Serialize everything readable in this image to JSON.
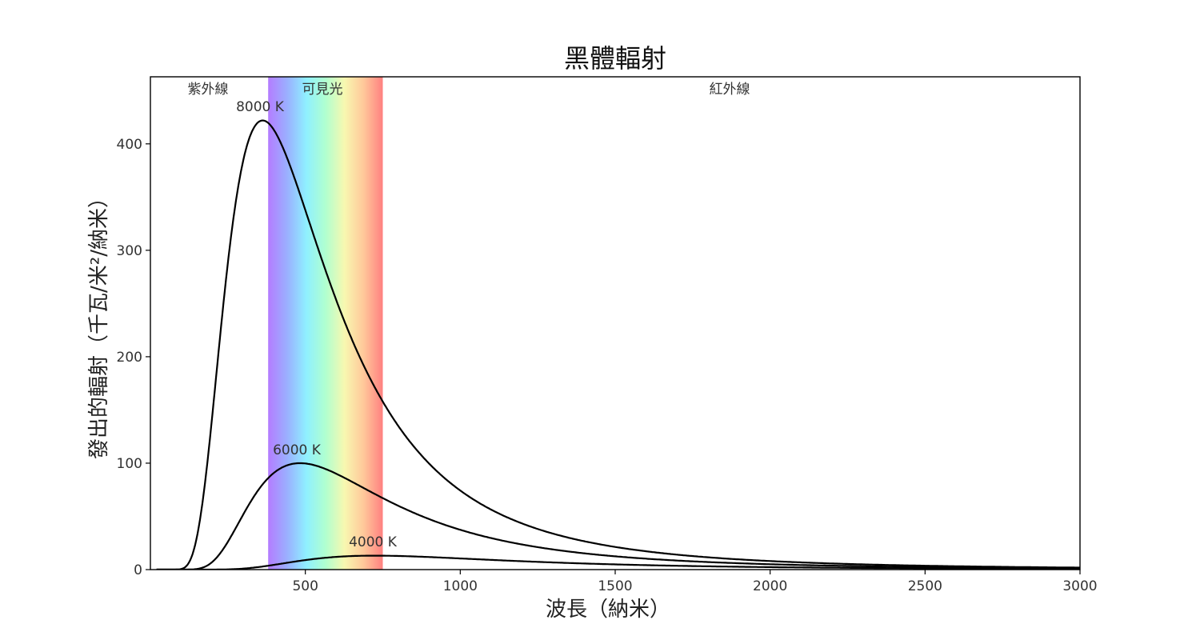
{
  "chart_data": {
    "type": "line",
    "title": "黑體輻射",
    "xlabel": "波長（納米）",
    "ylabel": "發出的輻射（千瓦/米²/納米）",
    "xlim": [
      0,
      3000
    ],
    "ylim": [
      0,
      463
    ],
    "xticks": [
      500,
      1000,
      1500,
      2000,
      2500,
      3000
    ],
    "yticks": [
      0,
      100,
      200,
      300,
      400
    ],
    "regions": [
      {
        "name": "紫外線",
        "x_range": [
          0,
          380
        ]
      },
      {
        "name": "可見光",
        "x_range": [
          380,
          750
        ]
      },
      {
        "name": "紅外線",
        "x_range": [
          750,
          3000
        ]
      }
    ],
    "visible_band_colors": [
      "#b47cff",
      "#9ab0ff",
      "#8ff0ff",
      "#b0ffd0",
      "#f8f8b0",
      "#ffc89a",
      "#ff8080"
    ],
    "series": [
      {
        "name": "8000 K",
        "temperature_K": 8000,
        "x": [
          100,
          150,
          200,
          250,
          300,
          362,
          400,
          450,
          500,
          600,
          700,
          800,
          1000,
          1200,
          1500,
          2000,
          2500,
          3000
        ],
        "y": [
          0.3,
          25,
          135,
          285,
          392,
          422,
          410,
          372,
          325,
          237,
          172,
          128,
          75,
          48,
          26,
          11,
          5.5,
          3
        ]
      },
      {
        "name": "6000 K",
        "temperature_K": 6000,
        "x": [
          100,
          200,
          300,
          400,
          483,
          500,
          600,
          700,
          800,
          1000,
          1500,
          2000,
          2500,
          3000
        ],
        "y": [
          0,
          10,
          58,
          92,
          100,
          100,
          88,
          71,
          56,
          35,
          13,
          6,
          3,
          1.8
        ]
      },
      {
        "name": "4000 K",
        "temperature_K": 4000,
        "x": [
          100,
          300,
          400,
          500,
          600,
          724,
          800,
          1000,
          1500,
          2000,
          2500,
          3000
        ],
        "y": [
          0,
          1.5,
          4.5,
          8.5,
          11.5,
          13.1,
          12.9,
          11.6,
          6.8,
          3.9,
          2.3,
          1.4
        ]
      }
    ]
  }
}
